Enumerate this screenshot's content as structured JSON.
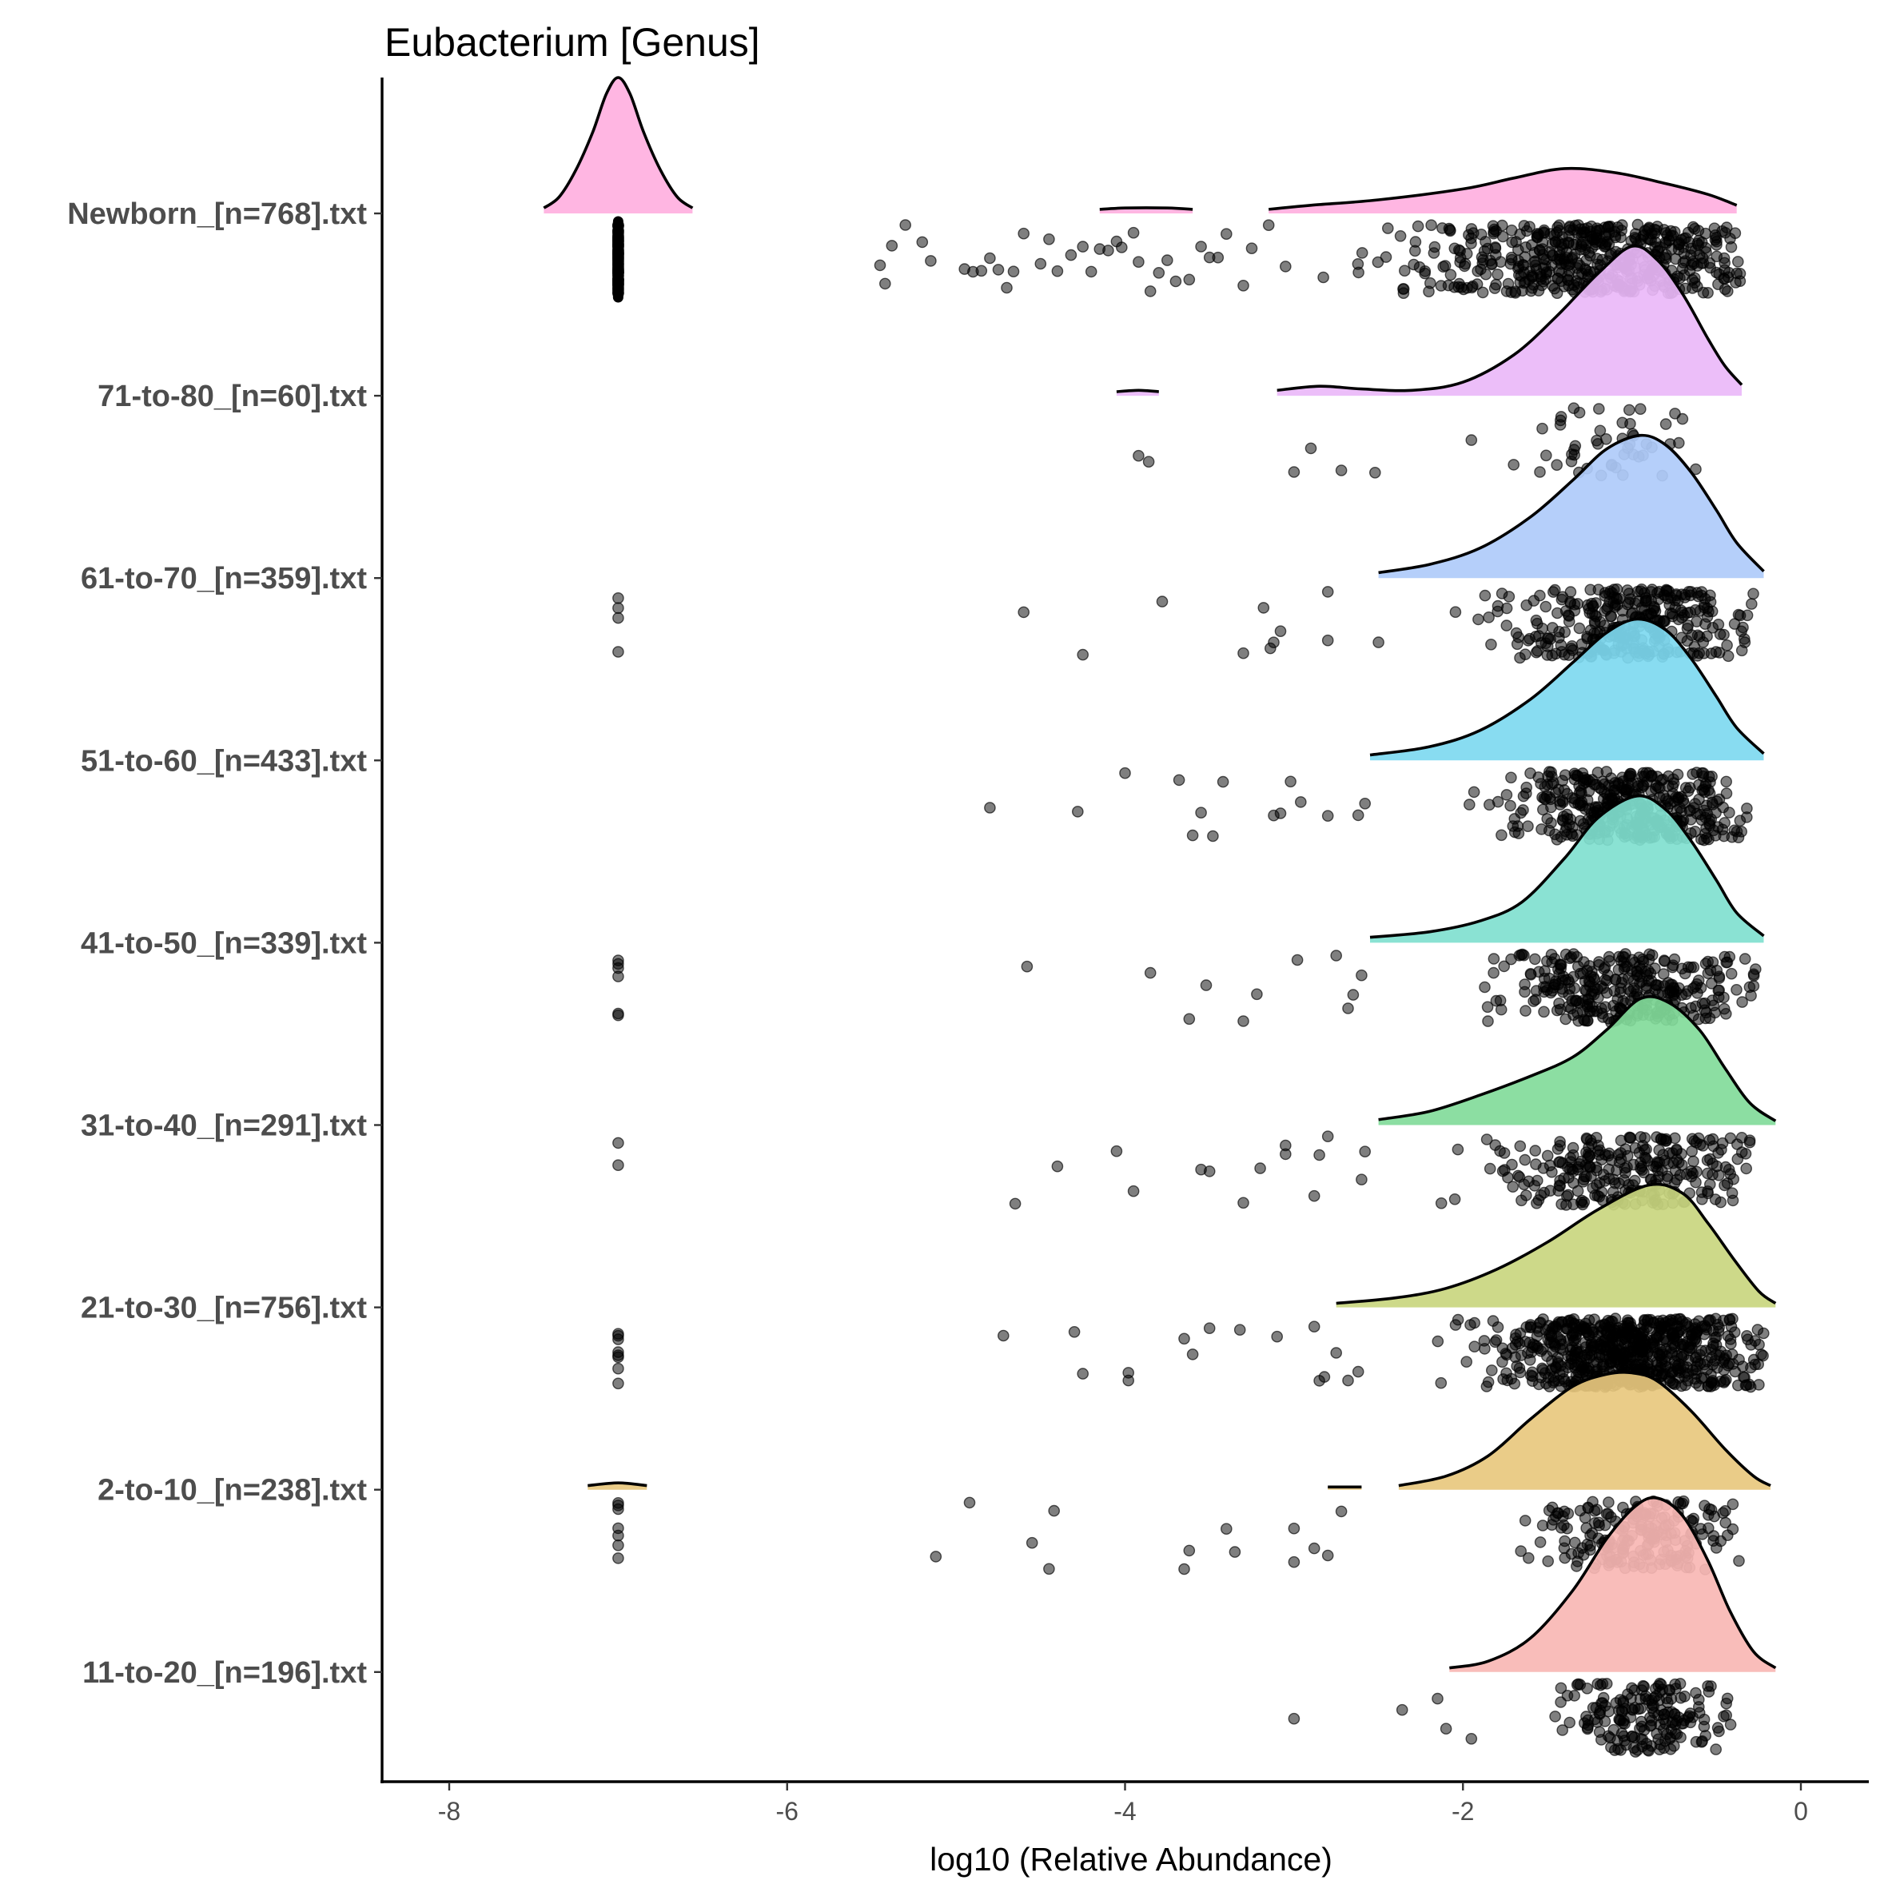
{
  "chart_data": {
    "type": "raincloud",
    "title": "Eubacterium [Genus]",
    "xlabel": "log10 (Relative Abundance)",
    "ylabel": "",
    "xlim": [
      -8.4,
      0.4
    ],
    "x_ticks": [
      -8,
      -6,
      -4,
      -2,
      0
    ],
    "x_tick_labels": [
      "-8",
      "-6",
      "-4",
      "-2",
      "0"
    ],
    "grid": false,
    "legend": "none",
    "point_color": "#000000",
    "point_alpha": 0.5,
    "outline_color": "#000000",
    "categories": [
      "Newborn_[n=768].txt",
      "71-to-80_[n=60].txt",
      "61-to-70_[n=359].txt",
      "51-to-60_[n=433].txt",
      "41-to-50_[n=339].txt",
      "31-to-40_[n=291].txt",
      "21-to-30_[n=756].txt",
      "2-to-10_[n=238].txt",
      "11-to-20_[n=196].txt"
    ],
    "groups": [
      {
        "name": "Newborn_[n=768].txt",
        "n": 768,
        "fill": "#FFB0E0",
        "density_segments": [
          [
            [
              -7.44,
              0.04
            ],
            [
              -7.35,
              0.12
            ],
            [
              -7.25,
              0.32
            ],
            [
              -7.15,
              0.6
            ],
            [
              -7.07,
              0.88
            ],
            [
              -7.0,
              1.0
            ],
            [
              -6.93,
              0.88
            ],
            [
              -6.85,
              0.6
            ],
            [
              -6.75,
              0.32
            ],
            [
              -6.65,
              0.12
            ],
            [
              -6.56,
              0.04
            ]
          ],
          [
            [
              -4.15,
              0.03
            ],
            [
              -4.0,
              0.04
            ],
            [
              -3.75,
              0.04
            ],
            [
              -3.6,
              0.03
            ]
          ],
          [
            [
              -3.15,
              0.03
            ],
            [
              -2.9,
              0.06
            ],
            [
              -2.5,
              0.1
            ],
            [
              -2.0,
              0.18
            ],
            [
              -1.7,
              0.26
            ],
            [
              -1.4,
              0.33
            ],
            [
              -1.1,
              0.3
            ],
            [
              -0.8,
              0.22
            ],
            [
              -0.55,
              0.14
            ],
            [
              -0.38,
              0.06
            ]
          ]
        ],
        "stack_value": -7.0,
        "stack_count": 120,
        "outliers": [
          -5.45,
          -5.42,
          -5.38,
          -5.3,
          -5.2,
          -5.15,
          -4.95,
          -4.9,
          -4.85,
          -4.8,
          -4.75,
          -4.7,
          -4.66,
          -4.6,
          -4.5,
          -4.45,
          -4.4,
          -4.32,
          -4.25,
          -4.2,
          -4.15,
          -4.1,
          -4.05,
          -4.02,
          -3.95,
          -3.92,
          -3.85,
          -3.8,
          -3.75,
          -3.7,
          -3.62,
          -3.55,
          -3.5,
          -3.45,
          -3.4,
          -3.3,
          -3.25,
          -3.15,
          -3.05
        ],
        "cluster": {
          "count": 520,
          "min": -3.0,
          "max": -0.35,
          "mode": -1.2,
          "spread": 0.75
        }
      },
      {
        "name": "71-to-80_[n=60].txt",
        "n": 60,
        "fill": "#EAB8F8",
        "density_segments": [
          [
            [
              -4.05,
              0.03
            ],
            [
              -3.92,
              0.04
            ],
            [
              -3.8,
              0.03
            ]
          ],
          [
            [
              -3.1,
              0.04
            ],
            [
              -2.85,
              0.07
            ],
            [
              -2.6,
              0.05
            ],
            [
              -2.3,
              0.04
            ],
            [
              -2.0,
              0.1
            ],
            [
              -1.7,
              0.3
            ],
            [
              -1.45,
              0.58
            ],
            [
              -1.2,
              0.9
            ],
            [
              -1.0,
              1.1
            ],
            [
              -0.85,
              1.0
            ],
            [
              -0.7,
              0.75
            ],
            [
              -0.55,
              0.42
            ],
            [
              -0.45,
              0.22
            ],
            [
              -0.35,
              0.08
            ]
          ]
        ],
        "stack_value": null,
        "stack_count": 0,
        "outliers": [
          -3.92,
          -3.86,
          -3.0,
          -2.9,
          -2.72,
          -2.52,
          -1.95,
          -1.7
        ],
        "cluster": {
          "count": 48,
          "min": -1.8,
          "max": -0.5,
          "mode": -1.05,
          "spread": 0.3
        }
      },
      {
        "name": "61-to-70_[n=359].txt",
        "n": 359,
        "fill": "#AFCBFA",
        "density_segments": [
          [
            [
              -2.5,
              0.04
            ],
            [
              -2.2,
              0.1
            ],
            [
              -1.9,
              0.22
            ],
            [
              -1.6,
              0.45
            ],
            [
              -1.35,
              0.72
            ],
            [
              -1.15,
              0.95
            ],
            [
              -0.95,
              1.05
            ],
            [
              -0.8,
              0.98
            ],
            [
              -0.65,
              0.78
            ],
            [
              -0.5,
              0.5
            ],
            [
              -0.38,
              0.26
            ],
            [
              -0.22,
              0.05
            ]
          ]
        ],
        "stack_value": -7.0,
        "stack_count": 4,
        "outliers": [
          -4.6,
          -4.25,
          -3.78,
          -3.3,
          -3.18,
          -3.14,
          -3.12,
          -3.08,
          -2.8,
          -2.8,
          -2.5
        ],
        "cluster": {
          "count": 330,
          "min": -2.45,
          "max": -0.28,
          "mode": -1.0,
          "spread": 0.5
        }
      },
      {
        "name": "51-to-60_[n=433].txt",
        "n": 433,
        "fill": "#7ED9F0",
        "density_segments": [
          [
            [
              -2.55,
              0.04
            ],
            [
              -2.2,
              0.1
            ],
            [
              -1.9,
              0.22
            ],
            [
              -1.6,
              0.45
            ],
            [
              -1.35,
              0.72
            ],
            [
              -1.15,
              0.94
            ],
            [
              -0.97,
              1.04
            ],
            [
              -0.8,
              0.96
            ],
            [
              -0.65,
              0.75
            ],
            [
              -0.5,
              0.47
            ],
            [
              -0.38,
              0.24
            ],
            [
              -0.22,
              0.05
            ]
          ]
        ],
        "stack_value": null,
        "stack_count": 0,
        "outliers": [
          -4.8,
          -4.28,
          -4.0,
          -3.68,
          -3.6,
          -3.55,
          -3.48,
          -3.42,
          -3.12,
          -3.08,
          -3.02,
          -2.96,
          -2.8,
          -2.62,
          -2.58
        ],
        "cluster": {
          "count": 405,
          "min": -2.6,
          "max": -0.3,
          "mode": -1.0,
          "spread": 0.5
        }
      },
      {
        "name": "41-to-50_[n=339].txt",
        "n": 339,
        "fill": "#80E0CF",
        "density_segments": [
          [
            [
              -2.55,
              0.04
            ],
            [
              -2.2,
              0.08
            ],
            [
              -1.9,
              0.16
            ],
            [
              -1.65,
              0.3
            ],
            [
              -1.4,
              0.62
            ],
            [
              -1.2,
              0.92
            ],
            [
              -0.97,
              1.08
            ],
            [
              -0.8,
              0.98
            ],
            [
              -0.65,
              0.75
            ],
            [
              -0.5,
              0.46
            ],
            [
              -0.38,
              0.22
            ],
            [
              -0.22,
              0.05
            ]
          ]
        ],
        "stack_value": -7.0,
        "stack_count": 6,
        "outliers": [
          -4.58,
          -3.85,
          -3.62,
          -3.52,
          -3.3,
          -3.22,
          -2.98,
          -2.75,
          -2.68,
          -2.65,
          -2.6
        ],
        "cluster": {
          "count": 320,
          "min": -2.55,
          "max": -0.25,
          "mode": -1.0,
          "spread": 0.55
        }
      },
      {
        "name": "31-to-40_[n=291].txt",
        "n": 291,
        "fill": "#82DB9A",
        "density_segments": [
          [
            [
              -2.5,
              0.04
            ],
            [
              -2.2,
              0.1
            ],
            [
              -1.9,
              0.22
            ],
            [
              -1.6,
              0.36
            ],
            [
              -1.35,
              0.5
            ],
            [
              -1.15,
              0.7
            ],
            [
              -0.95,
              0.93
            ],
            [
              -0.78,
              0.9
            ],
            [
              -0.6,
              0.7
            ],
            [
              -0.45,
              0.42
            ],
            [
              -0.3,
              0.16
            ],
            [
              -0.15,
              0.03
            ]
          ]
        ],
        "stack_value": -7.0,
        "stack_count": 2,
        "outliers": [
          -4.65,
          -4.4,
          -4.05,
          -3.95,
          -3.55,
          -3.5,
          -3.3,
          -3.2,
          -3.05,
          -3.05,
          -2.88,
          -2.85,
          -2.8,
          -2.6,
          -2.58
        ],
        "cluster": {
          "count": 272,
          "min": -2.45,
          "max": -0.3,
          "mode": -1.0,
          "spread": 0.55
        }
      },
      {
        "name": "21-to-30_[n=756].txt",
        "n": 756,
        "fill": "#C9D67F",
        "density_segments": [
          [
            [
              -2.75,
              0.03
            ],
            [
              -2.4,
              0.07
            ],
            [
              -2.1,
              0.14
            ],
            [
              -1.8,
              0.28
            ],
            [
              -1.5,
              0.48
            ],
            [
              -1.2,
              0.72
            ],
            [
              -0.9,
              0.9
            ],
            [
              -0.7,
              0.84
            ],
            [
              -0.55,
              0.62
            ],
            [
              -0.4,
              0.36
            ],
            [
              -0.25,
              0.12
            ],
            [
              -0.15,
              0.03
            ]
          ]
        ],
        "stack_value": -7.0,
        "stack_count": 8,
        "outliers": [
          -4.72,
          -4.3,
          -4.25,
          -3.98,
          -3.98,
          -3.65,
          -3.6,
          -3.5,
          -3.32,
          -3.1,
          -2.88,
          -2.85,
          -2.82,
          -2.75,
          -2.68,
          -2.62
        ],
        "cluster": {
          "count": 720,
          "min": -2.65,
          "max": -0.22,
          "mode": -1.0,
          "spread": 0.55
        }
      },
      {
        "name": "2-to-10_[n=238].txt",
        "n": 238,
        "fill": "#E8C87E",
        "density_segments": [
          [
            [
              -7.18,
              0.03
            ],
            [
              -7.0,
              0.05
            ],
            [
              -6.83,
              0.03
            ]
          ],
          [
            [
              -2.8,
              0.02
            ],
            [
              -2.6,
              0.02
            ]
          ],
          [
            [
              -2.38,
              0.03
            ],
            [
              -2.1,
              0.1
            ],
            [
              -1.85,
              0.25
            ],
            [
              -1.6,
              0.52
            ],
            [
              -1.35,
              0.76
            ],
            [
              -1.15,
              0.85
            ],
            [
              -1.0,
              0.86
            ],
            [
              -0.85,
              0.8
            ],
            [
              -0.65,
              0.58
            ],
            [
              -0.45,
              0.3
            ],
            [
              -0.28,
              0.1
            ],
            [
              -0.18,
              0.03
            ]
          ]
        ],
        "stack_value": -7.0,
        "stack_count": 7,
        "outliers": [
          -5.12,
          -4.92,
          -4.55,
          -4.45,
          -4.42,
          -3.65,
          -3.62,
          -3.4,
          -3.35,
          -3.0,
          -3.0,
          -2.88,
          -2.8,
          -2.72
        ],
        "cluster": {
          "count": 205,
          "min": -2.6,
          "max": -0.35,
          "mode": -0.95,
          "spread": 0.45
        }
      },
      {
        "name": "11-to-20_[n=196].txt",
        "n": 196,
        "fill": "#F9B7B4",
        "density_segments": [
          [
            [
              -2.08,
              0.03
            ],
            [
              -1.85,
              0.08
            ],
            [
              -1.6,
              0.25
            ],
            [
              -1.35,
              0.6
            ],
            [
              -1.15,
              0.98
            ],
            [
              -0.98,
              1.22
            ],
            [
              -0.85,
              1.28
            ],
            [
              -0.7,
              1.15
            ],
            [
              -0.55,
              0.82
            ],
            [
              -0.42,
              0.45
            ],
            [
              -0.28,
              0.15
            ],
            [
              -0.15,
              0.03
            ]
          ]
        ],
        "stack_value": null,
        "stack_count": 0,
        "outliers": [
          -3.0,
          -2.36,
          -2.15,
          -2.1,
          -1.95
        ],
        "cluster": {
          "count": 185,
          "min": -1.9,
          "max": -0.38,
          "mode": -0.9,
          "spread": 0.35
        }
      }
    ]
  }
}
